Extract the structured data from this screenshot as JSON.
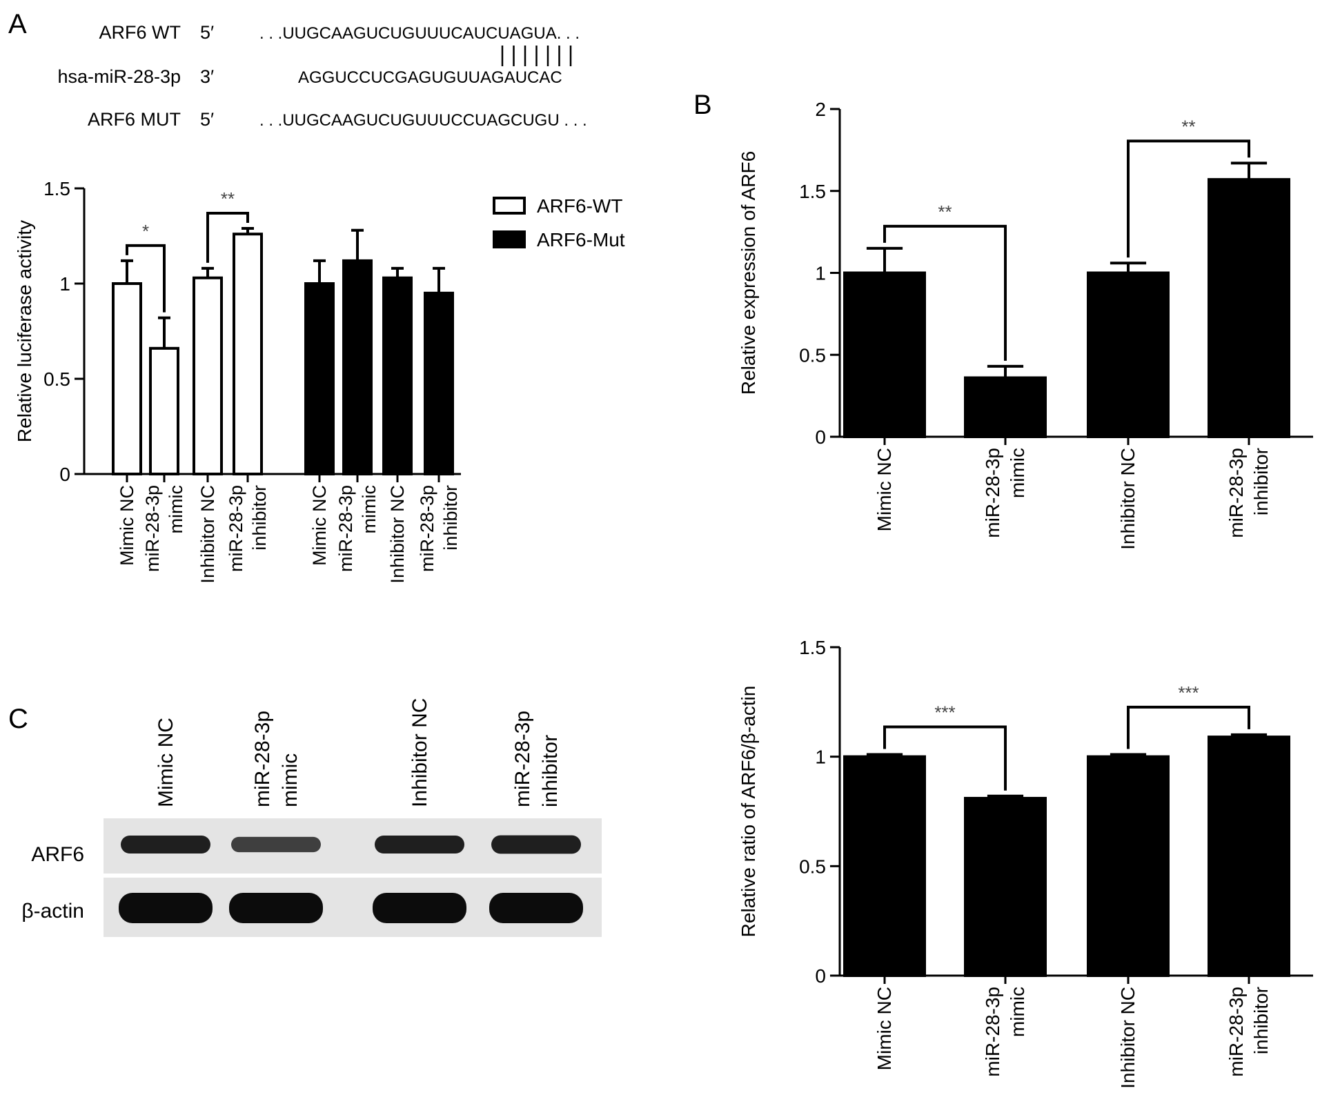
{
  "panels": {
    "a": "A",
    "b": "B",
    "c": "C"
  },
  "sequence": {
    "wt_name": "ARF6 WT",
    "wt_end": "5′",
    "wt_seq": ". . .UUGCAAGUCUGUUUCAUCUAGUA. . .",
    "mir_name": "hsa-miR-28-3p",
    "mir_end": "3′",
    "mir_seq": "AGGUCCUCGAGUGUUAGAUCAC",
    "mut_name": "ARF6 MUT",
    "mut_end": "5′",
    "mut_seq": ". . .UUGCAAGUCUGUUUCCUAGCUGU . . .",
    "pair_count": 7
  },
  "legend": {
    "wt": "ARF6-WT",
    "mut": "ARF6-Mut"
  },
  "blot": {
    "lanes": [
      [
        "Mimic NC"
      ],
      [
        "miR-28-3p",
        "mimic"
      ],
      [
        "Inhibitor NC"
      ],
      [
        "miR-28-3p",
        "inhibitor"
      ]
    ],
    "rows": [
      "ARF6",
      "β-actin"
    ],
    "arf6_intensity": [
      1.0,
      0.62,
      1.0,
      1.08
    ],
    "actin_intensity": [
      1.0,
      1.0,
      1.0,
      1.0
    ]
  },
  "chart_data": [
    {
      "id": "A",
      "type": "bar",
      "ylabel": "Relative luciferase activity",
      "ylim": [
        0,
        1.5
      ],
      "yticks": [
        0.0,
        0.5,
        1.0,
        1.5
      ],
      "categories": [
        [
          "Mimic NC"
        ],
        [
          "miR-28-3p",
          "mimic"
        ],
        [
          "Inhibitor NC"
        ],
        [
          "miR-28-3p",
          "inhibitor"
        ]
      ],
      "series": [
        {
          "name": "ARF6-WT",
          "fill": "#ffffff",
          "values": [
            1.0,
            0.66,
            1.03,
            1.26
          ],
          "errors": [
            0.12,
            0.16,
            0.05,
            0.03
          ]
        },
        {
          "name": "ARF6-Mut",
          "fill": "#000000",
          "values": [
            1.0,
            1.12,
            1.03,
            0.95
          ],
          "errors": [
            0.12,
            0.16,
            0.05,
            0.13
          ]
        }
      ],
      "significance": [
        {
          "series": 0,
          "from": 0,
          "to": 1,
          "label": "*"
        },
        {
          "series": 0,
          "from": 2,
          "to": 3,
          "label": "**"
        }
      ]
    },
    {
      "id": "B",
      "type": "bar",
      "ylabel": "Relative expression of ARF6",
      "ylim": [
        0,
        2.0
      ],
      "yticks": [
        0.0,
        0.5,
        1.0,
        1.5,
        2.0
      ],
      "categories": [
        [
          "Mimic NC"
        ],
        [
          "miR-28-3p",
          "mimic"
        ],
        [
          "Inhibitor NC"
        ],
        [
          "miR-28-3p",
          "inhibitor"
        ]
      ],
      "values": [
        1.0,
        0.36,
        1.0,
        1.57
      ],
      "errors": [
        0.15,
        0.07,
        0.06,
        0.1
      ],
      "significance": [
        {
          "from": 0,
          "to": 1,
          "label": "**"
        },
        {
          "from": 2,
          "to": 3,
          "label": "**"
        }
      ]
    },
    {
      "id": "C",
      "type": "bar",
      "ylabel": "Relative ratio of ARF6/β-actin",
      "ylim": [
        0,
        1.5
      ],
      "yticks": [
        0.0,
        0.5,
        1.0,
        1.5
      ],
      "categories": [
        [
          "Mimic NC"
        ],
        [
          "miR-28-3p",
          "mimic"
        ],
        [
          "Inhibitor NC"
        ],
        [
          "miR-28-3p",
          "inhibitor"
        ]
      ],
      "values": [
        1.0,
        0.81,
        1.0,
        1.09
      ],
      "errors": [
        0.01,
        0.01,
        0.01,
        0.01
      ],
      "significance": [
        {
          "from": 0,
          "to": 1,
          "label": "***"
        },
        {
          "from": 2,
          "to": 3,
          "label": "***"
        }
      ]
    }
  ]
}
